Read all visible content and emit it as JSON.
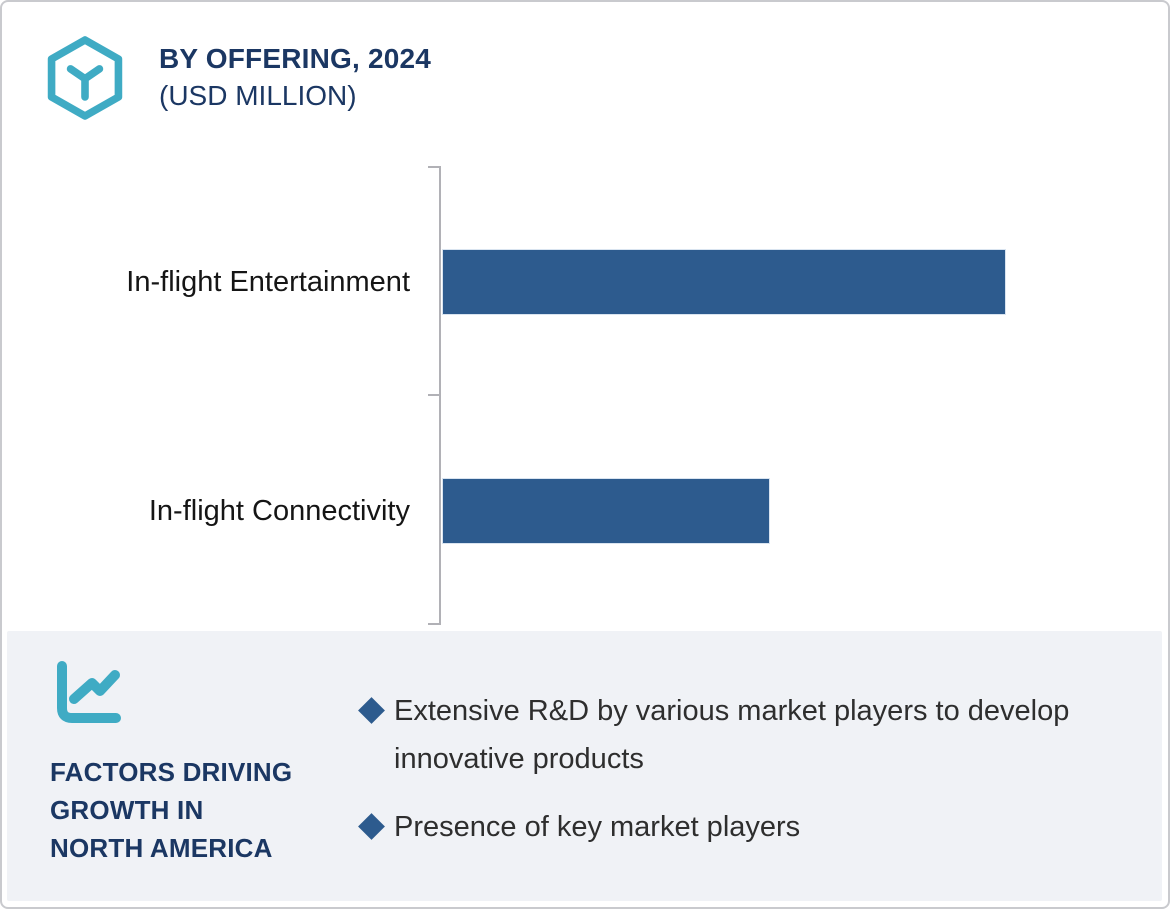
{
  "header": {
    "title": "BY OFFERING, 2024",
    "subtitle": "(USD MILLION)",
    "title_color": "#1b3763",
    "accent_color": "#3fabc4",
    "logo_icon": "hexagon-cube-icon"
  },
  "chart_data": {
    "type": "bar",
    "orientation": "horizontal",
    "title": "BY OFFERING, 2024 (USD MILLION)",
    "categories": [
      "In-flight Entertainment",
      "In-flight Connectivity"
    ],
    "values": [
      564,
      328
    ],
    "values_note": "relative bar lengths in pixels; no numeric axis, gridlines or data labels shown",
    "bar_color": "#2d5b8e",
    "axis_color": "#b1b1b6",
    "grid": false,
    "legend": false
  },
  "factors": {
    "icon": "trend-line-chart-icon",
    "icon_color": "#3fabc4",
    "panel_bg": "#f0f2f6",
    "title_lines": [
      "FACTORS DRIVING",
      "GROWTH IN",
      "NORTH AMERICA"
    ],
    "title_color": "#1b3763",
    "bullet_color": "#2d5b8e",
    "bullets": [
      "Extensive R&D by various market players to develop innovative products",
      "Presence of key market players"
    ]
  }
}
